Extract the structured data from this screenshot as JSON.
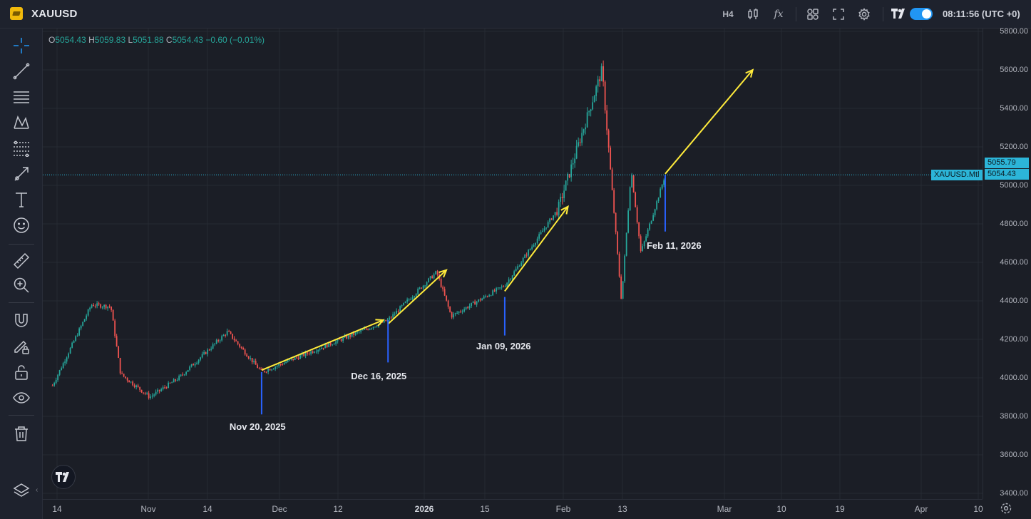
{
  "header": {
    "symbol": "XAUUSD",
    "interval": "H4",
    "fx_label": "fx",
    "clock": "08:11:56 (UTC +0)"
  },
  "left_toolbar": {
    "icons": [
      "crosshair-icon",
      "trend-line-icon",
      "horizontal-lines-icon",
      "pattern-icon",
      "fib-icon",
      "brush-arrow-icon",
      "text-icon",
      "emoji-icon",
      "ruler-icon",
      "zoom-in-icon",
      "magnet-icon",
      "lock-pencil-icon",
      "unlock-icon",
      "eye-icon",
      "trash-icon"
    ]
  },
  "legend": {
    "o_label": "O",
    "o": "5054.43",
    "h_label": "H",
    "h": "5059.83",
    "l_label": "L",
    "l": "5051.88",
    "c_label": "C",
    "c": "5054.43",
    "change": "−0.60 (−0.01%)"
  },
  "price_axis": {
    "ticks": [
      "5800.00",
      "5600.00",
      "5400.00",
      "5200.00",
      "5000.00",
      "4800.00",
      "4600.00",
      "4400.00",
      "4200.00",
      "4000.00",
      "3800.00",
      "3600.00",
      "3400.00"
    ],
    "ask_box": "5055.79",
    "last_box": "5054.43",
    "symbol_tag": "XAUUSD.Mtl"
  },
  "time_axis": {
    "ticks": [
      {
        "label": "14",
        "bold": false
      },
      {
        "label": "Nov",
        "bold": false
      },
      {
        "label": "14",
        "bold": false
      },
      {
        "label": "Dec",
        "bold": false
      },
      {
        "label": "12",
        "bold": false
      },
      {
        "label": "2026",
        "bold": true
      },
      {
        "label": "15",
        "bold": false
      },
      {
        "label": "Feb",
        "bold": false
      },
      {
        "label": "13",
        "bold": false
      },
      {
        "label": "Mar",
        "bold": false
      },
      {
        "label": "10",
        "bold": false
      },
      {
        "label": "19",
        "bold": false
      },
      {
        "label": "Apr",
        "bold": false
      },
      {
        "label": "10",
        "bold": false
      }
    ]
  },
  "annotations": {
    "nov20": "Nov 20, 2025",
    "dec16": "Dec 16, 2025",
    "jan09": "Jan 09, 2026",
    "feb11": "Feb 11, 2026"
  },
  "colors": {
    "up": "#26a69a",
    "down": "#ef5350",
    "arrow": "#ffeb3b",
    "marker": "#2962ff",
    "price_line": "#2cb5d8"
  },
  "chart_data": {
    "type": "candlestick",
    "symbol": "XAUUSD",
    "interval": "H4",
    "ylim": [
      3400,
      5800
    ],
    "key_points": [
      {
        "x": "Oct 08, 2025",
        "y": 3960
      },
      {
        "x": "Oct 16, 2025",
        "y": 4380
      },
      {
        "x": "Oct 20, 2025",
        "y": 4370
      },
      {
        "x": "Oct 22, 2025",
        "y": 4020
      },
      {
        "x": "Oct 28, 2025",
        "y": 3900
      },
      {
        "x": "Nov 03, 2025",
        "y": 4000
      },
      {
        "x": "Nov 13, 2025",
        "y": 4240
      },
      {
        "x": "Nov 20, 2025",
        "y": 4030
      },
      {
        "x": "Dec 16, 2025",
        "y": 4300
      },
      {
        "x": "Dec 26, 2025",
        "y": 4550
      },
      {
        "x": "Dec 29, 2025",
        "y": 4320
      },
      {
        "x": "Jan 09, 2026",
        "y": 4480
      },
      {
        "x": "Jan 20, 2026",
        "y": 4880
      },
      {
        "x": "Jan 29, 2026",
        "y": 5600
      },
      {
        "x": "Feb 02, 2026",
        "y": 4400
      },
      {
        "x": "Feb 04, 2026",
        "y": 5080
      },
      {
        "x": "Feb 06, 2026",
        "y": 4650
      },
      {
        "x": "Feb 11, 2026",
        "y": 5054.43
      }
    ],
    "price_line": 5054.43,
    "projection_arrows": [
      {
        "from": {
          "x": "Nov 20, 2025",
          "y": 4040
        },
        "to": {
          "x": "Dec 15, 2025",
          "y": 4300
        }
      },
      {
        "from": {
          "x": "Dec 16, 2025",
          "y": 4280
        },
        "to": {
          "x": "Dec 28, 2025",
          "y": 4560
        }
      },
      {
        "from": {
          "x": "Jan 09, 2026",
          "y": 4450
        },
        "to": {
          "x": "Jan 22, 2026",
          "y": 4890
        }
      },
      {
        "from": {
          "x": "Feb 11, 2026",
          "y": 5060
        },
        "to": {
          "x": "Mar 01, 2026",
          "y": 5600
        }
      }
    ]
  }
}
